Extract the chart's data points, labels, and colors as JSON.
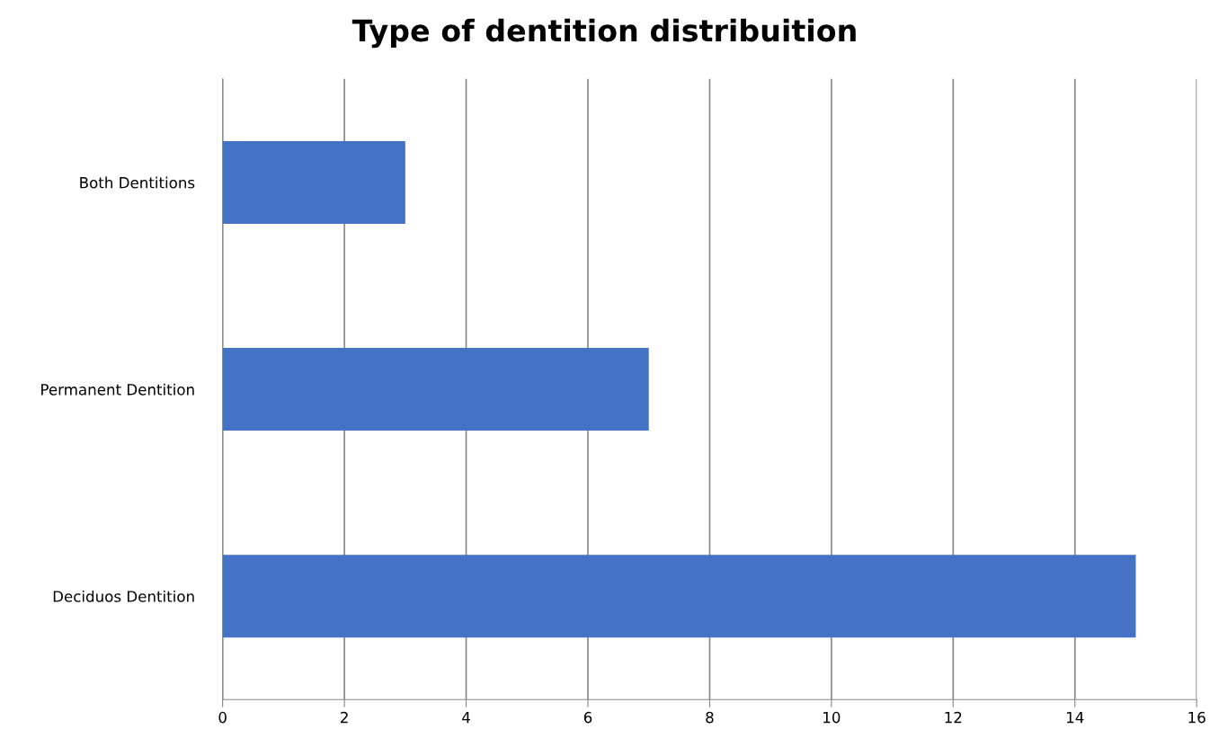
{
  "chart_data": {
    "type": "bar",
    "orientation": "horizontal",
    "title": "Type of dentition distribuition",
    "categories": [
      "Both Dentitions",
      "Permanent Dentition",
      "Deciduos Dentition"
    ],
    "values": [
      3,
      7,
      15
    ],
    "color": "#4472c4",
    "xlim": [
      0,
      16
    ],
    "xticks": [
      0,
      2,
      4,
      6,
      8,
      10,
      12,
      14,
      16
    ],
    "grid": "x"
  }
}
